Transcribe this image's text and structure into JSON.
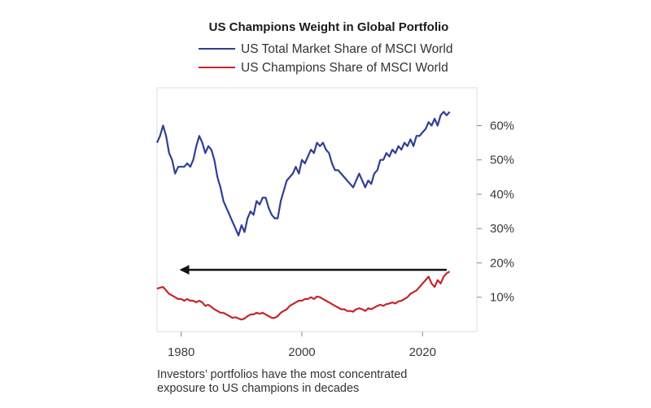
{
  "chart_data": {
    "type": "line",
    "title": "US Champions Weight in Global Portfolio",
    "xlabel": "",
    "ylabel": "",
    "xlim": [
      1976,
      2029
    ],
    "ylim": [
      0,
      71
    ],
    "x_ticks": [
      1980,
      2000,
      2020
    ],
    "x_tick_labels": [
      "1980",
      "2000",
      "2020"
    ],
    "y_ticks": [
      10,
      20,
      30,
      40,
      50,
      60
    ],
    "y_tick_labels": [
      "10%",
      "20%",
      "30%",
      "40%",
      "50%",
      "60%"
    ],
    "legend_position": "top",
    "series": [
      {
        "name": "US Total Market Share of MSCI World",
        "color": "#2e3f95",
        "points": [
          [
            1976,
            55
          ],
          [
            1976.5,
            57
          ],
          [
            1977,
            60
          ],
          [
            1977.5,
            57
          ],
          [
            1978,
            52
          ],
          [
            1978.5,
            50
          ],
          [
            1979,
            46
          ],
          [
            1979.5,
            48
          ],
          [
            1980,
            48
          ],
          [
            1980.5,
            48
          ],
          [
            1981,
            49
          ],
          [
            1981.5,
            48
          ],
          [
            1982,
            50
          ],
          [
            1982.5,
            54
          ],
          [
            1983,
            57
          ],
          [
            1983.5,
            55
          ],
          [
            1984,
            52
          ],
          [
            1984.5,
            54
          ],
          [
            1985,
            53
          ],
          [
            1985.5,
            50
          ],
          [
            1986,
            45
          ],
          [
            1986.5,
            42
          ],
          [
            1987,
            38
          ],
          [
            1987.5,
            36
          ],
          [
            1988,
            34
          ],
          [
            1988.5,
            32
          ],
          [
            1989,
            30
          ],
          [
            1989.5,
            28
          ],
          [
            1990,
            31
          ],
          [
            1990.5,
            29
          ],
          [
            1991,
            33
          ],
          [
            1991.5,
            35
          ],
          [
            1992,
            34
          ],
          [
            1992.5,
            38
          ],
          [
            1993,
            37
          ],
          [
            1993.5,
            39
          ],
          [
            1994,
            39
          ],
          [
            1994.5,
            36
          ],
          [
            1995,
            34
          ],
          [
            1995.5,
            33
          ],
          [
            1996,
            33
          ],
          [
            1996.5,
            38
          ],
          [
            1997,
            41
          ],
          [
            1997.5,
            44
          ],
          [
            1998,
            45
          ],
          [
            1998.5,
            46
          ],
          [
            1999,
            48
          ],
          [
            1999.5,
            46
          ],
          [
            2000,
            50
          ],
          [
            2000.5,
            49
          ],
          [
            2001,
            51
          ],
          [
            2001.5,
            53
          ],
          [
            2002,
            52
          ],
          [
            2002.5,
            55
          ],
          [
            2003,
            54
          ],
          [
            2003.5,
            55
          ],
          [
            2004,
            53
          ],
          [
            2004.5,
            52
          ],
          [
            2005,
            49
          ],
          [
            2005.5,
            47
          ],
          [
            2006,
            47
          ],
          [
            2006.5,
            46
          ],
          [
            2007,
            45
          ],
          [
            2007.5,
            44
          ],
          [
            2008,
            43
          ],
          [
            2008.5,
            42
          ],
          [
            2009,
            44
          ],
          [
            2009.5,
            46
          ],
          [
            2010,
            44
          ],
          [
            2010.5,
            42
          ],
          [
            2011,
            44
          ],
          [
            2011.5,
            43
          ],
          [
            2012,
            46
          ],
          [
            2012.5,
            47
          ],
          [
            2013,
            50
          ],
          [
            2013.5,
            50
          ],
          [
            2014,
            52
          ],
          [
            2014.5,
            51
          ],
          [
            2015,
            53
          ],
          [
            2015.5,
            52
          ],
          [
            2016,
            54
          ],
          [
            2016.5,
            53
          ],
          [
            2017,
            55
          ],
          [
            2017.5,
            54
          ],
          [
            2018,
            56
          ],
          [
            2018.5,
            54
          ],
          [
            2019,
            57
          ],
          [
            2019.5,
            57
          ],
          [
            2020,
            58
          ],
          [
            2020.5,
            59
          ],
          [
            2021,
            61
          ],
          [
            2021.5,
            60
          ],
          [
            2022,
            62
          ],
          [
            2022.5,
            60
          ],
          [
            2023,
            63
          ],
          [
            2023.5,
            64
          ],
          [
            2024,
            63
          ],
          [
            2024.5,
            64
          ]
        ]
      },
      {
        "name": "US Champions Share of MSCI World",
        "color": "#c4272b",
        "points": [
          [
            1976,
            12.5
          ],
          [
            1976.5,
            12.8
          ],
          [
            1977,
            13
          ],
          [
            1977.5,
            12
          ],
          [
            1978,
            11
          ],
          [
            1978.5,
            10.5
          ],
          [
            1979,
            10
          ],
          [
            1979.5,
            9.5
          ],
          [
            1980,
            9.5
          ],
          [
            1980.5,
            9
          ],
          [
            1981,
            9.5
          ],
          [
            1981.5,
            9
          ],
          [
            1982,
            9
          ],
          [
            1982.5,
            8.5
          ],
          [
            1983,
            9
          ],
          [
            1983.5,
            8.5
          ],
          [
            1984,
            7.5
          ],
          [
            1984.5,
            7.8
          ],
          [
            1985,
            7.2
          ],
          [
            1985.5,
            6.5
          ],
          [
            1986,
            6
          ],
          [
            1986.5,
            5.5
          ],
          [
            1987,
            5.5
          ],
          [
            1987.5,
            5
          ],
          [
            1988,
            4.5
          ],
          [
            1988.5,
            4
          ],
          [
            1989,
            4.2
          ],
          [
            1989.5,
            3.8
          ],
          [
            1990,
            3.5
          ],
          [
            1990.5,
            3.8
          ],
          [
            1991,
            4.5
          ],
          [
            1991.5,
            5
          ],
          [
            1992,
            5
          ],
          [
            1992.5,
            5.5
          ],
          [
            1993,
            5.2
          ],
          [
            1993.5,
            5.5
          ],
          [
            1994,
            5
          ],
          [
            1994.5,
            4.5
          ],
          [
            1995,
            4
          ],
          [
            1995.5,
            4
          ],
          [
            1996,
            4.5
          ],
          [
            1996.5,
            5.5
          ],
          [
            1997,
            6
          ],
          [
            1997.5,
            6.5
          ],
          [
            1998,
            7.5
          ],
          [
            1998.5,
            8
          ],
          [
            1999,
            8.5
          ],
          [
            1999.5,
            9
          ],
          [
            2000,
            9
          ],
          [
            2000.5,
            9.5
          ],
          [
            2001,
            9.5
          ],
          [
            2001.5,
            10
          ],
          [
            2002,
            9.5
          ],
          [
            2002.5,
            10.2
          ],
          [
            2003,
            10
          ],
          [
            2003.5,
            9.5
          ],
          [
            2004,
            9
          ],
          [
            2004.5,
            8.5
          ],
          [
            2005,
            8
          ],
          [
            2005.5,
            7.5
          ],
          [
            2006,
            7
          ],
          [
            2006.5,
            6.5
          ],
          [
            2007,
            6.5
          ],
          [
            2007.5,
            6
          ],
          [
            2008,
            6
          ],
          [
            2008.5,
            5.8
          ],
          [
            2009,
            6.5
          ],
          [
            2009.5,
            6.8
          ],
          [
            2010,
            6.5
          ],
          [
            2010.5,
            6
          ],
          [
            2011,
            6.8
          ],
          [
            2011.5,
            6.5
          ],
          [
            2012,
            7
          ],
          [
            2012.5,
            7.5
          ],
          [
            2013,
            7.8
          ],
          [
            2013.5,
            7.5
          ],
          [
            2014,
            8
          ],
          [
            2014.5,
            8.2
          ],
          [
            2015,
            8.5
          ],
          [
            2015.5,
            8.2
          ],
          [
            2016,
            8.8
          ],
          [
            2016.5,
            9
          ],
          [
            2017,
            9.5
          ],
          [
            2017.5,
            10
          ],
          [
            2018,
            11
          ],
          [
            2018.5,
            11.5
          ],
          [
            2019,
            12
          ],
          [
            2019.5,
            13
          ],
          [
            2020,
            14
          ],
          [
            2020.5,
            15
          ],
          [
            2021,
            16
          ],
          [
            2021.5,
            14
          ],
          [
            2022,
            13
          ],
          [
            2022.5,
            15
          ],
          [
            2023,
            14
          ],
          [
            2023.5,
            16
          ],
          [
            2024,
            17
          ],
          [
            2024.5,
            17.5
          ]
        ]
      }
    ],
    "annotations": [
      {
        "type": "arrow",
        "from": [
          2024,
          18
        ],
        "to": [
          1980,
          18
        ],
        "color": "#111111"
      }
    ]
  },
  "caption": {
    "line1": "Investors’ portfolios have the most concentrated",
    "line2": "exposure to US champions in decades"
  }
}
